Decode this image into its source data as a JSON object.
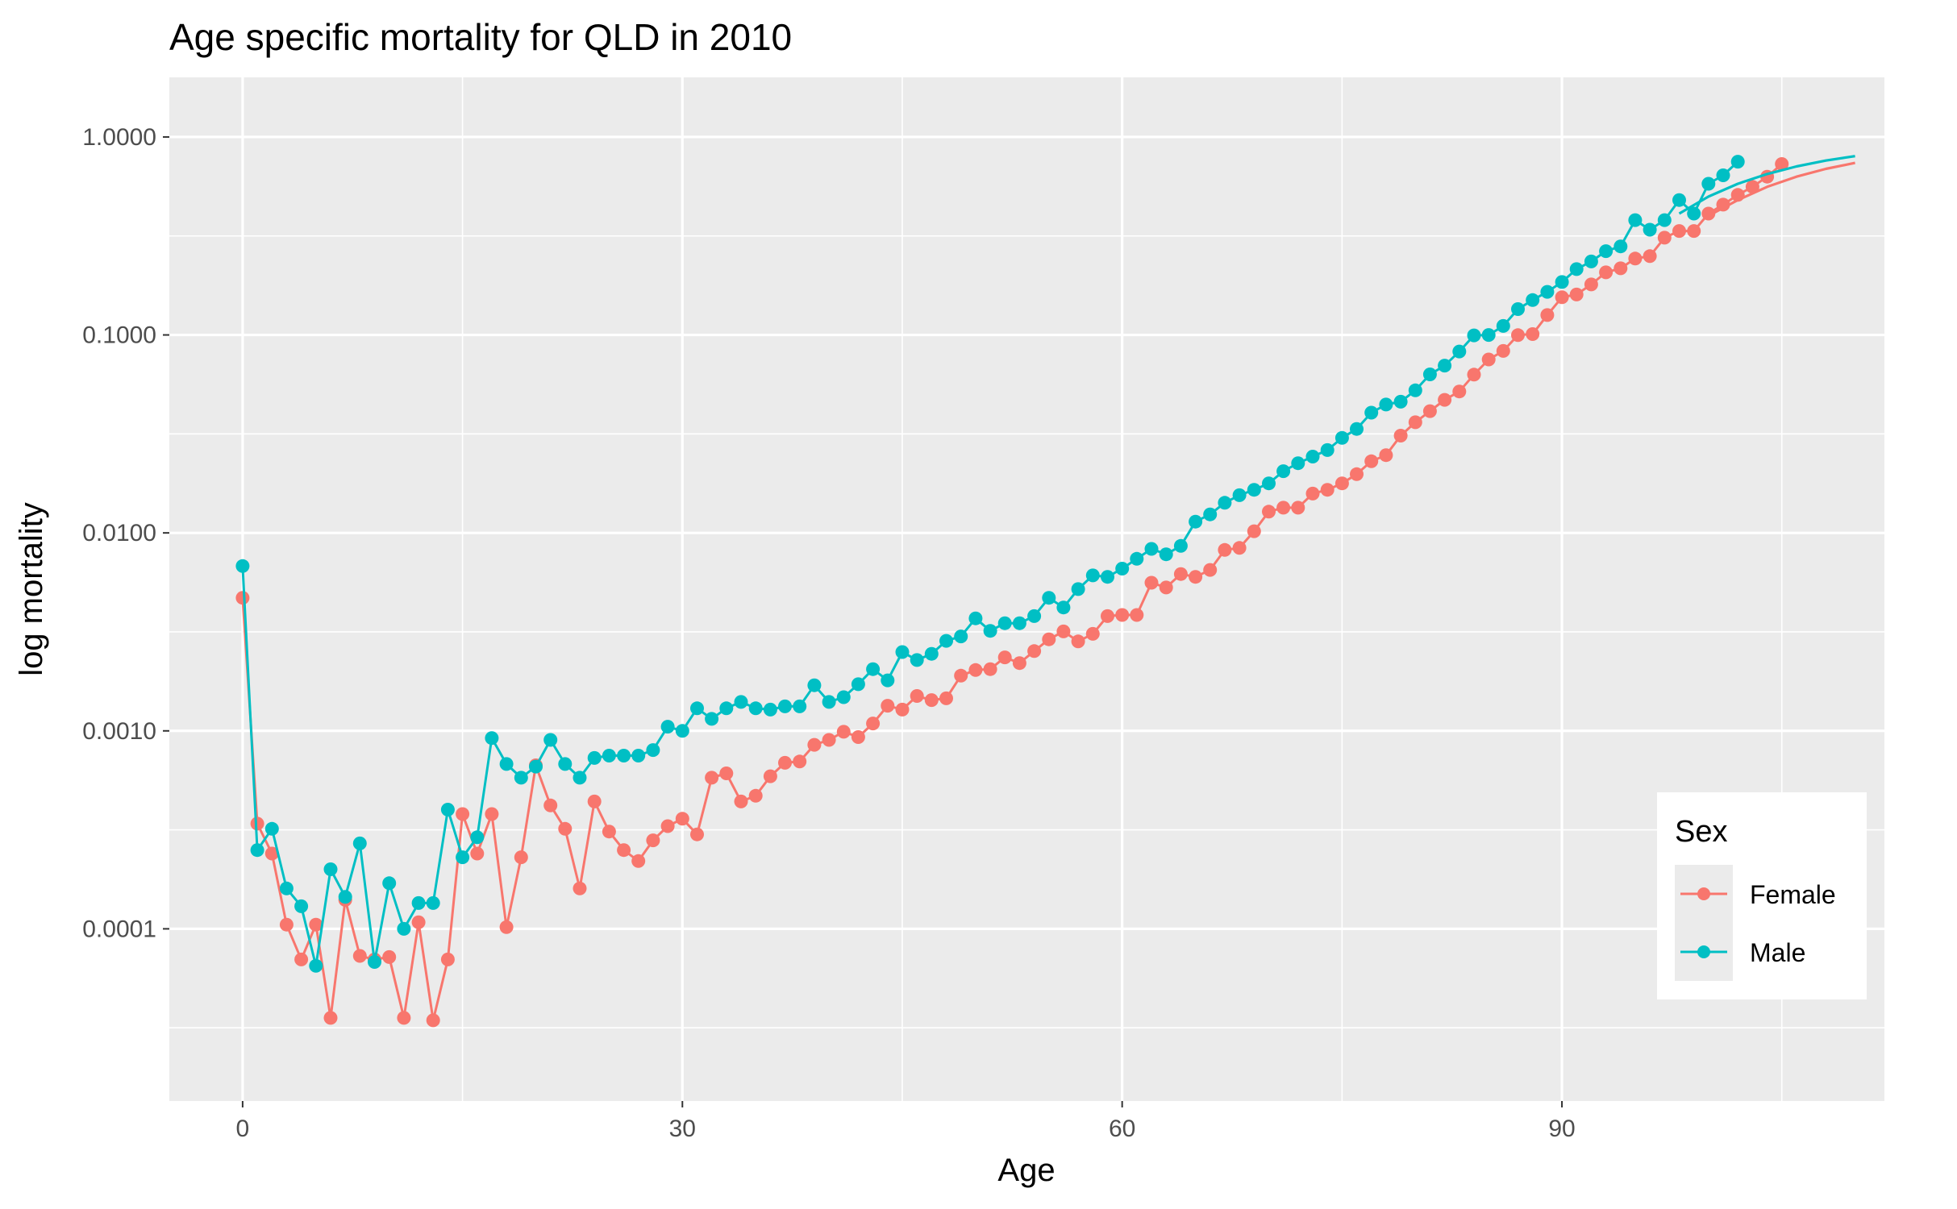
{
  "chart_data": {
    "type": "line",
    "title": "Age specific mortality for QLD in 2010",
    "xlabel": "Age",
    "ylabel": "log mortality",
    "x_scale": "linear",
    "y_scale": "log10",
    "xlim": [
      -5,
      112
    ],
    "ylim": [
      1.35e-05,
      2
    ],
    "x_ticks": [
      0,
      30,
      60,
      90
    ],
    "x_tick_labels": [
      "0",
      "30",
      "60",
      "90"
    ],
    "y_ticks": [
      0.0001,
      0.001,
      0.01,
      0.1,
      1
    ],
    "y_tick_labels": [
      "0.0001",
      "0.0010",
      "0.0100",
      "0.1000",
      "1.0000"
    ],
    "grid": true,
    "legend": {
      "title": "Sex",
      "placement": "bottom-right",
      "entries": [
        "Female",
        "Male"
      ]
    },
    "series": [
      {
        "name": "Female",
        "color": "#F8766D",
        "points": [
          [
            0,
            0.0047
          ],
          [
            1,
            0.00034
          ],
          [
            2,
            0.00024
          ],
          [
            3,
            0.000105
          ],
          [
            4,
            7e-05
          ],
          [
            5,
            0.000105
          ],
          [
            6,
            3.55e-05
          ],
          [
            7,
            0.00014
          ],
          [
            8,
            7.3e-05
          ],
          [
            9,
            7e-05
          ],
          [
            10,
            7.2e-05
          ],
          [
            11,
            3.55e-05
          ],
          [
            12,
            0.000108
          ],
          [
            13,
            3.45e-05
          ],
          [
            14,
            7e-05
          ],
          [
            15,
            0.00038
          ],
          [
            16,
            0.00024
          ],
          [
            17,
            0.00038
          ],
          [
            18,
            0.000102
          ],
          [
            19,
            0.00023
          ],
          [
            20,
            0.00067
          ],
          [
            21,
            0.00042
          ],
          [
            22,
            0.00032
          ],
          [
            23,
            0.00016
          ],
          [
            24,
            0.00044
          ],
          [
            25,
            0.00031
          ],
          [
            26,
            0.00025
          ],
          [
            27,
            0.00022
          ],
          [
            28,
            0.00028
          ],
          [
            29,
            0.00033
          ],
          [
            30,
            0.00036
          ],
          [
            31,
            0.0003
          ],
          [
            32,
            0.00058
          ],
          [
            33,
            0.00061
          ],
          [
            34,
            0.00044
          ],
          [
            35,
            0.00047
          ],
          [
            36,
            0.00059
          ],
          [
            37,
            0.00069
          ],
          [
            38,
            0.0007
          ],
          [
            39,
            0.00085
          ],
          [
            40,
            0.0009
          ],
          [
            41,
            0.00099
          ],
          [
            42,
            0.00093
          ],
          [
            43,
            0.00109
          ],
          [
            44,
            0.00134
          ],
          [
            45,
            0.00128
          ],
          [
            46,
            0.0015
          ],
          [
            47,
            0.00143
          ],
          [
            48,
            0.00146
          ],
          [
            49,
            0.0019
          ],
          [
            50,
            0.00203
          ],
          [
            51,
            0.00205
          ],
          [
            52,
            0.00235
          ],
          [
            53,
            0.0022
          ],
          [
            54,
            0.00253
          ],
          [
            55,
            0.0029
          ],
          [
            56,
            0.00318
          ],
          [
            57,
            0.00283
          ],
          [
            58,
            0.00309
          ],
          [
            59,
            0.0038
          ],
          [
            60,
            0.00385
          ],
          [
            61,
            0.00385
          ],
          [
            62,
            0.0056
          ],
          [
            63,
            0.0053
          ],
          [
            64,
            0.0062
          ],
          [
            65,
            0.006
          ],
          [
            66,
            0.0065
          ],
          [
            67,
            0.0082
          ],
          [
            68,
            0.0084
          ],
          [
            69,
            0.0102
          ],
          [
            70,
            0.0128
          ],
          [
            71,
            0.0134
          ],
          [
            72,
            0.0134
          ],
          [
            73,
            0.0158
          ],
          [
            74,
            0.0165
          ],
          [
            75,
            0.0178
          ],
          [
            76,
            0.0198
          ],
          [
            77,
            0.023
          ],
          [
            78,
            0.0247
          ],
          [
            79,
            0.031
          ],
          [
            80,
            0.0362
          ],
          [
            81,
            0.0412
          ],
          [
            82,
            0.047
          ],
          [
            83,
            0.0518
          ],
          [
            84,
            0.063
          ],
          [
            85,
            0.0752
          ],
          [
            86,
            0.083
          ],
          [
            87,
            0.0998
          ],
          [
            88,
            0.101
          ],
          [
            89,
            0.126
          ],
          [
            90,
            0.155
          ],
          [
            91,
            0.16
          ],
          [
            92,
            0.18
          ],
          [
            93,
            0.207
          ],
          [
            94,
            0.217
          ],
          [
            95,
            0.243
          ],
          [
            96,
            0.25
          ],
          [
            97,
            0.31
          ],
          [
            98,
            0.335
          ],
          [
            99,
            0.335
          ],
          [
            100,
            0.41
          ],
          [
            101,
            0.455
          ],
          [
            102,
            0.51
          ],
          [
            103,
            0.56
          ],
          [
            104,
            0.63
          ],
          [
            105,
            0.73
          ]
        ],
        "fitted_tail": [
          [
            100,
            0.4
          ],
          [
            102,
            0.48
          ],
          [
            104,
            0.56
          ],
          [
            106,
            0.63
          ],
          [
            108,
            0.69
          ],
          [
            110,
            0.74
          ]
        ]
      },
      {
        "name": "Male",
        "color": "#00BFC4",
        "points": [
          [
            0,
            0.0068
          ],
          [
            1,
            0.00025
          ],
          [
            2,
            0.00032
          ],
          [
            3,
            0.00016
          ],
          [
            4,
            0.00013
          ],
          [
            5,
            6.5e-05
          ],
          [
            6,
            0.0002
          ],
          [
            7,
            0.000145
          ],
          [
            8,
            0.00027
          ],
          [
            9,
            6.8e-05
          ],
          [
            10,
            0.00017
          ],
          [
            11,
            0.0001
          ],
          [
            12,
            0.000135
          ],
          [
            13,
            0.000135
          ],
          [
            14,
            0.0004
          ],
          [
            15,
            0.00023
          ],
          [
            16,
            0.00029
          ],
          [
            17,
            0.00092
          ],
          [
            18,
            0.00068
          ],
          [
            19,
            0.00058
          ],
          [
            20,
            0.00066
          ],
          [
            21,
            0.0009
          ],
          [
            22,
            0.00068
          ],
          [
            23,
            0.00058
          ],
          [
            24,
            0.00073
          ],
          [
            25,
            0.00075
          ],
          [
            26,
            0.00075
          ],
          [
            27,
            0.00075
          ],
          [
            28,
            0.0008
          ],
          [
            29,
            0.00105
          ],
          [
            30,
            0.001
          ],
          [
            31,
            0.0013
          ],
          [
            32,
            0.00115
          ],
          [
            33,
            0.0013
          ],
          [
            34,
            0.0014
          ],
          [
            35,
            0.0013
          ],
          [
            36,
            0.00128
          ],
          [
            37,
            0.00133
          ],
          [
            38,
            0.00133
          ],
          [
            39,
            0.0017
          ],
          [
            40,
            0.0014
          ],
          [
            41,
            0.00148
          ],
          [
            42,
            0.00172
          ],
          [
            43,
            0.00205
          ],
          [
            44,
            0.0018
          ],
          [
            45,
            0.0025
          ],
          [
            46,
            0.00228
          ],
          [
            47,
            0.00245
          ],
          [
            48,
            0.00285
          ],
          [
            49,
            0.003
          ],
          [
            50,
            0.0037
          ],
          [
            51,
            0.0032
          ],
          [
            52,
            0.0035
          ],
          [
            53,
            0.0035
          ],
          [
            54,
            0.0038
          ],
          [
            55,
            0.0047
          ],
          [
            56,
            0.0042
          ],
          [
            57,
            0.0052
          ],
          [
            58,
            0.0061
          ],
          [
            59,
            0.006
          ],
          [
            60,
            0.0066
          ],
          [
            61,
            0.0074
          ],
          [
            62,
            0.0083
          ],
          [
            63,
            0.0078
          ],
          [
            64,
            0.0086
          ],
          [
            65,
            0.0114
          ],
          [
            66,
            0.0124
          ],
          [
            67,
            0.0142
          ],
          [
            68,
            0.0155
          ],
          [
            69,
            0.0165
          ],
          [
            70,
            0.0178
          ],
          [
            71,
            0.0205
          ],
          [
            72,
            0.0225
          ],
          [
            73,
            0.0243
          ],
          [
            74,
            0.0262
          ],
          [
            75,
            0.0302
          ],
          [
            76,
            0.0335
          ],
          [
            77,
            0.0405
          ],
          [
            78,
            0.0445
          ],
          [
            79,
            0.046
          ],
          [
            80,
            0.0525
          ],
          [
            81,
            0.0632
          ],
          [
            82,
            0.07
          ],
          [
            83,
            0.0825
          ],
          [
            84,
            0.0995
          ],
          [
            85,
            0.1
          ],
          [
            86,
            0.111
          ],
          [
            87,
            0.135
          ],
          [
            88,
            0.15
          ],
          [
            89,
            0.165
          ],
          [
            90,
            0.185
          ],
          [
            91,
            0.215
          ],
          [
            92,
            0.235
          ],
          [
            93,
            0.265
          ],
          [
            94,
            0.28
          ],
          [
            95,
            0.38
          ],
          [
            96,
            0.34
          ],
          [
            97,
            0.38
          ],
          [
            98,
            0.48
          ],
          [
            99,
            0.41
          ],
          [
            100,
            0.58
          ],
          [
            101,
            0.64
          ],
          [
            102,
            0.75
          ]
        ],
        "fitted_tail": [
          [
            98,
            0.41
          ],
          [
            100,
            0.5
          ],
          [
            102,
            0.58
          ],
          [
            104,
            0.65
          ],
          [
            106,
            0.71
          ],
          [
            108,
            0.76
          ],
          [
            110,
            0.8
          ]
        ]
      }
    ]
  }
}
